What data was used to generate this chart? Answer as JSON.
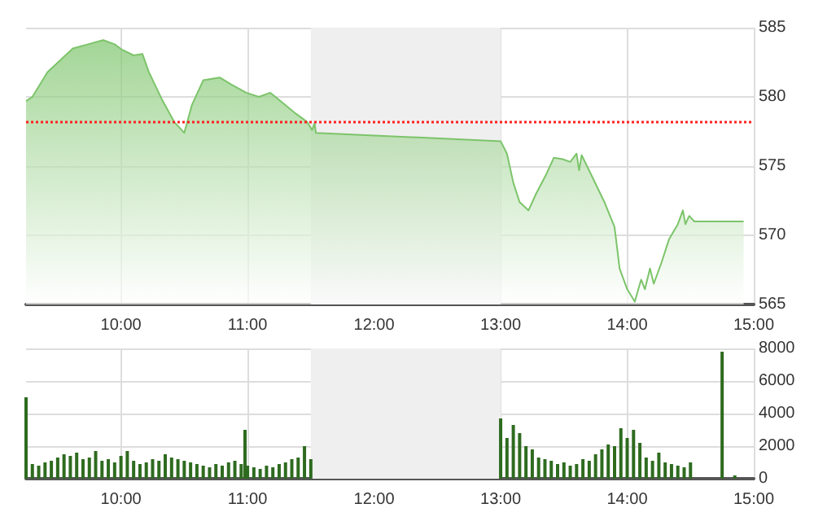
{
  "chart_data": [
    {
      "type": "area",
      "x": [
        9.25,
        9.3,
        9.42,
        9.62,
        9.74,
        9.86,
        9.95,
        10.01,
        10.1,
        10.17,
        10.22,
        10.33,
        10.42,
        10.5,
        10.56,
        10.65,
        10.78,
        10.87,
        10.99,
        11.09,
        11.18,
        11.26,
        11.38,
        11.47,
        11.51,
        11.53,
        11.54,
        13.0,
        13.05,
        13.1,
        13.15,
        13.22,
        13.28,
        13.36,
        13.42,
        13.49,
        13.55,
        13.6,
        13.62,
        13.64,
        13.73,
        13.82,
        13.9,
        13.94,
        14.0,
        14.06,
        14.11,
        14.14,
        14.18,
        14.21,
        14.27,
        14.33,
        14.4,
        14.44,
        14.46,
        14.49,
        14.53,
        14.92
      ],
      "series": [
        {
          "color": "#7cc46a",
          "values": [
            579.7,
            580,
            581.8,
            583.5,
            583.8,
            584.1,
            583.8,
            583.4,
            583,
            583.1,
            581.8,
            579.7,
            578.2,
            577.4,
            579.4,
            581.2,
            581.4,
            580.9,
            580.3,
            580,
            580.3,
            579.7,
            578.8,
            578.2,
            577.6,
            578.1,
            577.4,
            576.8,
            575.9,
            573.8,
            572.4,
            571.8,
            573,
            574.4,
            575.6,
            575.5,
            575.3,
            575.9,
            574.7,
            575.8,
            574.1,
            572.4,
            570.6,
            567.6,
            566.1,
            565.2,
            566.8,
            566.1,
            567.6,
            566.5,
            568,
            569.7,
            570.8,
            571.8,
            570.8,
            571.4,
            571,
            571
          ]
        }
      ],
      "xlim": [
        9.25,
        15
      ],
      "xticks": [
        {
          "value": 10,
          "label": "10:00"
        },
        {
          "value": 11,
          "label": "11:00"
        },
        {
          "value": 12,
          "label": "12:00"
        },
        {
          "value": 13,
          "label": "13:00"
        },
        {
          "value": 14,
          "label": "14:00"
        },
        {
          "value": 15,
          "label": "15:00"
        }
      ],
      "ylim": [
        565,
        585
      ],
      "yticks": [
        565,
        570,
        575,
        580,
        585
      ],
      "grid": true,
      "ref_lines": [
        {
          "axis": "y",
          "value": 578.2,
          "color": "#ff2020",
          "line_style": "dotted"
        }
      ],
      "bands": [
        {
          "axis": "x",
          "from": 11.5,
          "to": 13,
          "color": "#efefef"
        }
      ]
    },
    {
      "type": "bar",
      "x": [
        9.25,
        9.3,
        9.35,
        9.4,
        9.45,
        9.5,
        9.55,
        9.6,
        9.65,
        9.7,
        9.75,
        9.8,
        9.85,
        9.9,
        9.95,
        10.0,
        10.05,
        10.1,
        10.15,
        10.2,
        10.25,
        10.3,
        10.35,
        10.4,
        10.45,
        10.5,
        10.55,
        10.6,
        10.65,
        10.7,
        10.75,
        10.8,
        10.85,
        10.9,
        10.95,
        10.98,
        11.0,
        11.05,
        11.1,
        11.15,
        11.2,
        11.25,
        11.3,
        11.35,
        11.4,
        11.45,
        11.5,
        13.0,
        13.05,
        13.1,
        13.15,
        13.2,
        13.25,
        13.3,
        13.35,
        13.4,
        13.45,
        13.5,
        13.55,
        13.6,
        13.65,
        13.7,
        13.75,
        13.8,
        13.85,
        13.9,
        13.95,
        14.0,
        14.05,
        14.1,
        14.15,
        14.2,
        14.25,
        14.3,
        14.35,
        14.4,
        14.45,
        14.5,
        14.75,
        14.85
      ],
      "series": [
        {
          "color": "#2e6b1f",
          "values": [
            5000,
            900,
            800,
            1000,
            1100,
            1300,
            1500,
            1400,
            1600,
            1200,
            1300,
            1700,
            1100,
            1200,
            1000,
            1400,
            1700,
            1100,
            900,
            1000,
            1200,
            1100,
            1500,
            1300,
            1200,
            1100,
            1000,
            900,
            800,
            700,
            900,
            800,
            1000,
            1100,
            900,
            3000,
            800,
            700,
            600,
            800,
            700,
            900,
            1000,
            1200,
            1300,
            2000,
            1200,
            3700,
            2500,
            3300,
            2800,
            2000,
            1800,
            1300,
            1200,
            1100,
            900,
            1000,
            800,
            900,
            1200,
            1100,
            1500,
            1800,
            2100,
            2000,
            3100,
            2500,
            3000,
            2200,
            1300,
            1100,
            1600,
            1000,
            900,
            800,
            700,
            1000,
            7800,
            200
          ]
        }
      ],
      "xlim": [
        9.25,
        15
      ],
      "xticks": [
        {
          "value": 10,
          "label": "10:00"
        },
        {
          "value": 11,
          "label": "11:00"
        },
        {
          "value": 12,
          "label": "12:00"
        },
        {
          "value": 13,
          "label": "13:00"
        },
        {
          "value": 14,
          "label": "14:00"
        },
        {
          "value": 15,
          "label": "15:00"
        }
      ],
      "ylim": [
        0,
        8000
      ],
      "yticks": [
        0,
        2000,
        4000,
        6000,
        8000
      ],
      "grid": true,
      "bands": [
        {
          "axis": "x",
          "from": 11.5,
          "to": 13,
          "color": "#efefef"
        }
      ]
    }
  ]
}
